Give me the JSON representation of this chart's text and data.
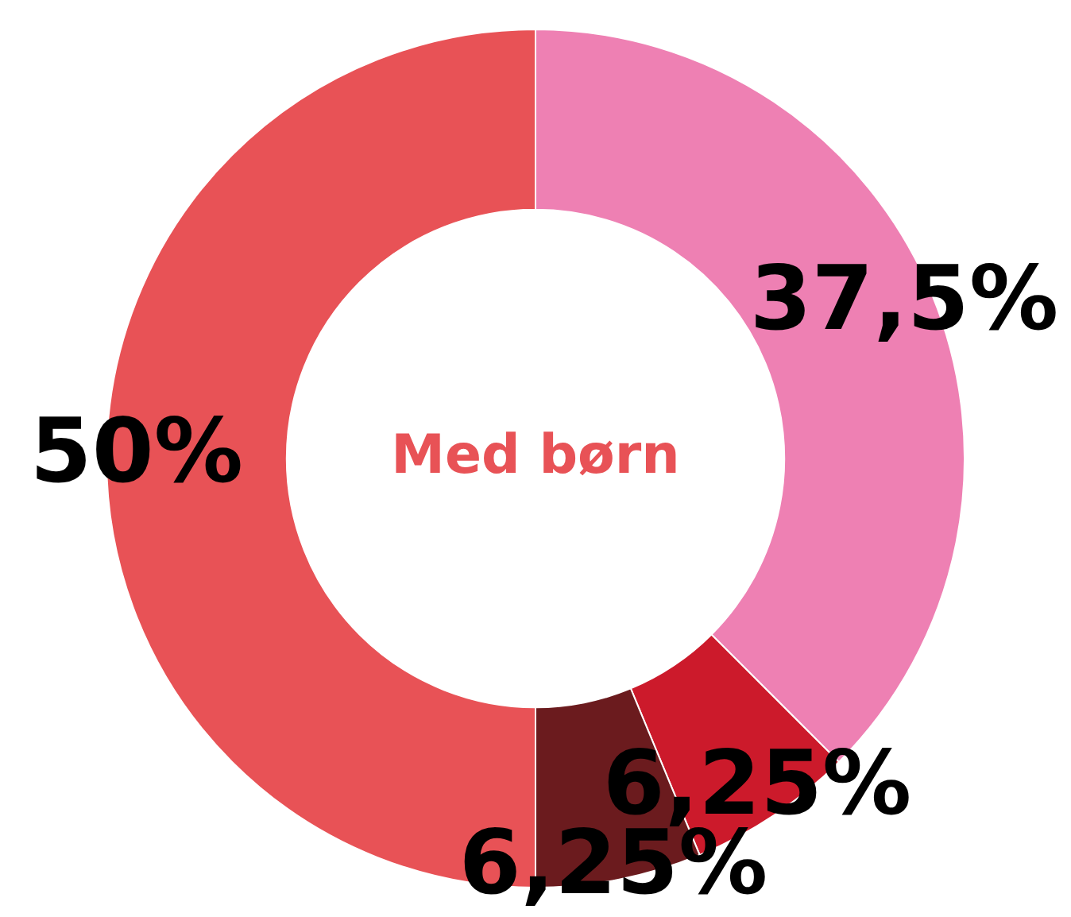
{
  "chart_data": {
    "type": "donut",
    "title": "Med børn",
    "categories": [
      null,
      null,
      null,
      null
    ],
    "values": [
      37.5,
      6.25,
      6.25,
      50
    ],
    "colors": [
      "#ee80b3",
      "#cc1a2b",
      "#6b1b1e",
      "#e85256"
    ],
    "value_labels": [
      "37,5%",
      "6,25%",
      "6,25%",
      "50%"
    ],
    "legend": false
  }
}
